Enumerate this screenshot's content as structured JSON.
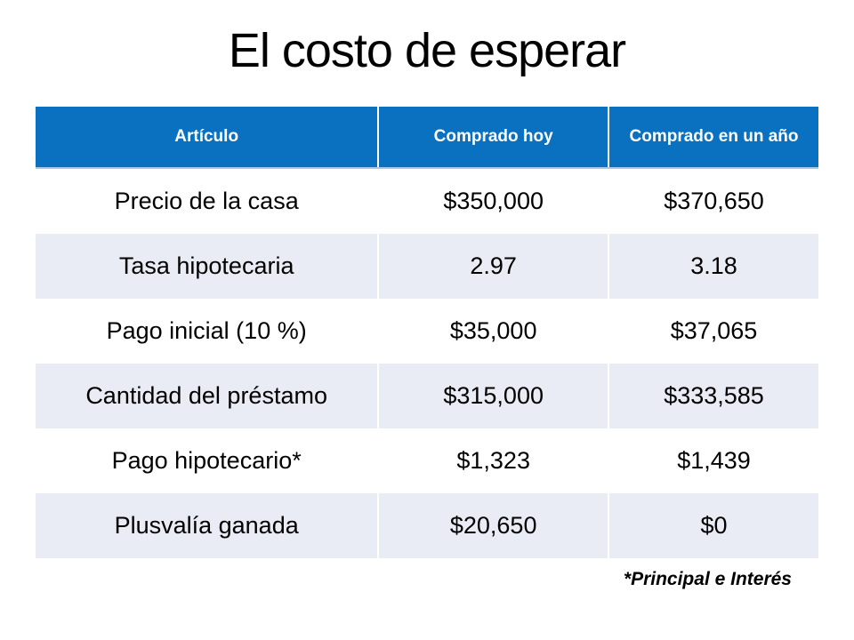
{
  "slide": {
    "title": "El costo de esperar",
    "footnote": "*Principal e Interés"
  },
  "table": {
    "headers": [
      "Artículo",
      "Comprado hoy",
      "Comprado en un año"
    ],
    "rows": [
      {
        "item": "Precio de la casa",
        "today": "$350,000",
        "in_a_year": "$370,650"
      },
      {
        "item": "Tasa hipotecaria",
        "today": "2.97",
        "in_a_year": "3.18"
      },
      {
        "item": "Pago inicial (10 %)",
        "today": "$35,000",
        "in_a_year": "$37,065"
      },
      {
        "item": "Cantidad del préstamo",
        "today": "$315,000",
        "in_a_year": "$333,585"
      },
      {
        "item": "Pago hipotecario*",
        "today": "$1,323",
        "in_a_year": "$1,439"
      },
      {
        "item": "Plusvalía ganada",
        "today": "$20,650",
        "in_a_year": "$0"
      }
    ]
  },
  "colors": {
    "header_bg": "#0A70C0",
    "band_bg": "#E9EBF5",
    "text": "#000000",
    "header_text": "#FFFFFF",
    "header_underline": "#A6C9E8"
  }
}
